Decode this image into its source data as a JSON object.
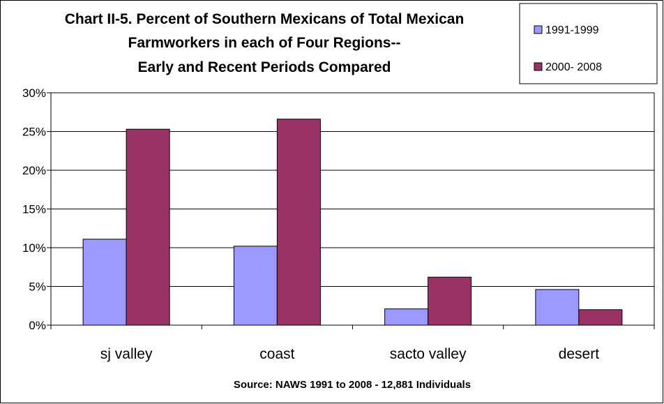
{
  "chart_data": {
    "type": "bar",
    "title_lines": [
      "Chart II-5. Percent of Southern Mexicans of Total Mexican",
      "Farmworkers in each of Four Regions--",
      "Early and Recent Periods Compared"
    ],
    "categories": [
      "sj valley",
      "coast",
      "sacto valley",
      "desert"
    ],
    "series": [
      {
        "name": "1991-1999",
        "color": "#9999ff",
        "values": [
          11.1,
          10.2,
          2.1,
          4.6
        ]
      },
      {
        "name": "2000- 2008",
        "color": "#993366",
        "values": [
          25.3,
          26.6,
          6.2,
          2.0
        ]
      }
    ],
    "ylim": [
      0,
      30
    ],
    "yticks": [
      "0%",
      "5%",
      "10%",
      "15%",
      "20%",
      "25%",
      "30%"
    ],
    "ytick_values": [
      0,
      5,
      10,
      15,
      20,
      25,
      30
    ],
    "grid": true,
    "legend_position": "top-right",
    "source": "Source: NAWS 1991 to 2008 - 12,881 Individuals"
  }
}
